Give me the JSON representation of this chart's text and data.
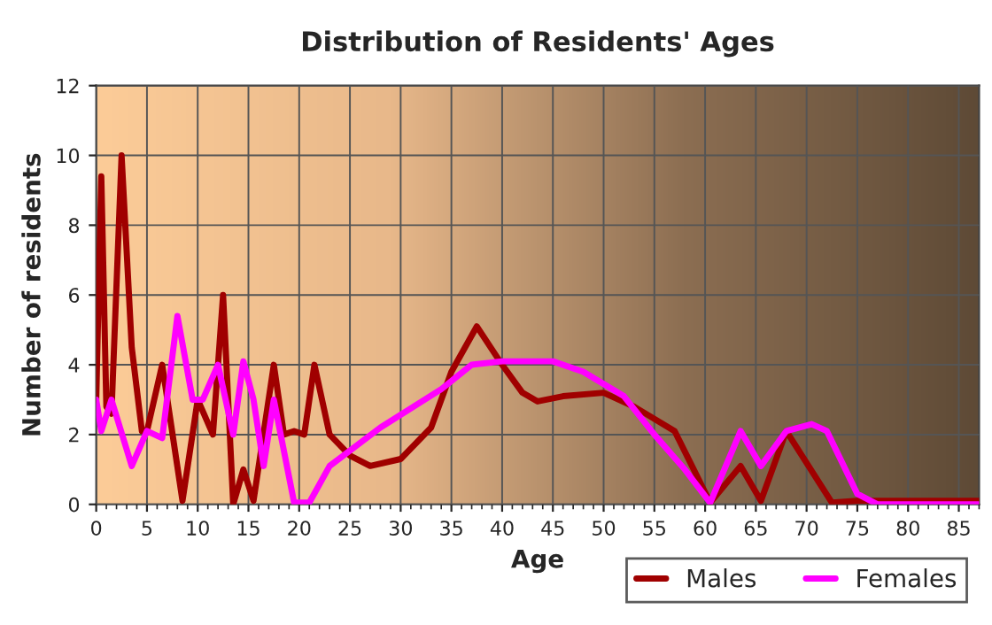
{
  "chart_data": {
    "type": "line",
    "title": "Distribution of Residents' Ages",
    "xlabel": "Age",
    "ylabel": "Number of residents",
    "xlim": [
      0,
      87
    ],
    "xticks": [
      0,
      5,
      10,
      15,
      20,
      25,
      30,
      35,
      40,
      45,
      50,
      55,
      60,
      65,
      70,
      75,
      80,
      85
    ],
    "ylim": [
      0,
      12
    ],
    "yticks": [
      0,
      2,
      4,
      6,
      8,
      10,
      12
    ],
    "grid": true,
    "legend": "bottom right",
    "marker": "none",
    "line_style": "solid",
    "series": [
      {
        "name": "Males",
        "color": "#a00000",
        "x": [
          0,
          0.5,
          1,
          1.5,
          2.5,
          3.5,
          4.5,
          5,
          6.5,
          8.5,
          10,
          11.5,
          12.5,
          13.5,
          14.5,
          15.5,
          17.5,
          18.5,
          19.5,
          20.5,
          21.5,
          23,
          25,
          27,
          30,
          33,
          35,
          37.5,
          40,
          42,
          43.5,
          46,
          50,
          53,
          57,
          60.5,
          63.5,
          65.5,
          68,
          72.5,
          75,
          87
        ],
        "values": [
          3,
          9.4,
          2.8,
          2.6,
          10,
          4.5,
          2.1,
          2.1,
          4,
          0.1,
          3,
          2,
          6,
          0,
          1,
          0.1,
          4,
          2,
          2.1,
          2,
          4,
          2,
          1.4,
          1.1,
          1.3,
          2.2,
          3.8,
          5.1,
          4,
          3.2,
          2.95,
          3.1,
          3.2,
          2.8,
          2.1,
          0.05,
          1.1,
          0.1,
          2.1,
          0.05,
          0.1,
          0.1
        ]
      },
      {
        "name": "Females",
        "color": "#ff00ff",
        "x": [
          0,
          0.5,
          1.5,
          3.5,
          5,
          6.5,
          8,
          9.5,
          10.5,
          12,
          13.5,
          14.5,
          15.5,
          16.5,
          17.5,
          19.5,
          21,
          23,
          28,
          34,
          37,
          40,
          45,
          48,
          52,
          55,
          58,
          60.5,
          63.5,
          65.5,
          68,
          70.5,
          72,
          75,
          77,
          87
        ],
        "values": [
          3,
          2.1,
          3,
          1.1,
          2.1,
          1.9,
          5.4,
          3,
          3,
          4,
          2,
          4.1,
          3,
          1.1,
          3,
          0.05,
          0.05,
          1.1,
          2.2,
          3.3,
          4,
          4.1,
          4.1,
          3.8,
          3.1,
          2,
          1,
          0.05,
          2.1,
          1.1,
          2.1,
          2.3,
          2.1,
          0.3,
          0,
          0
        ]
      }
    ]
  }
}
